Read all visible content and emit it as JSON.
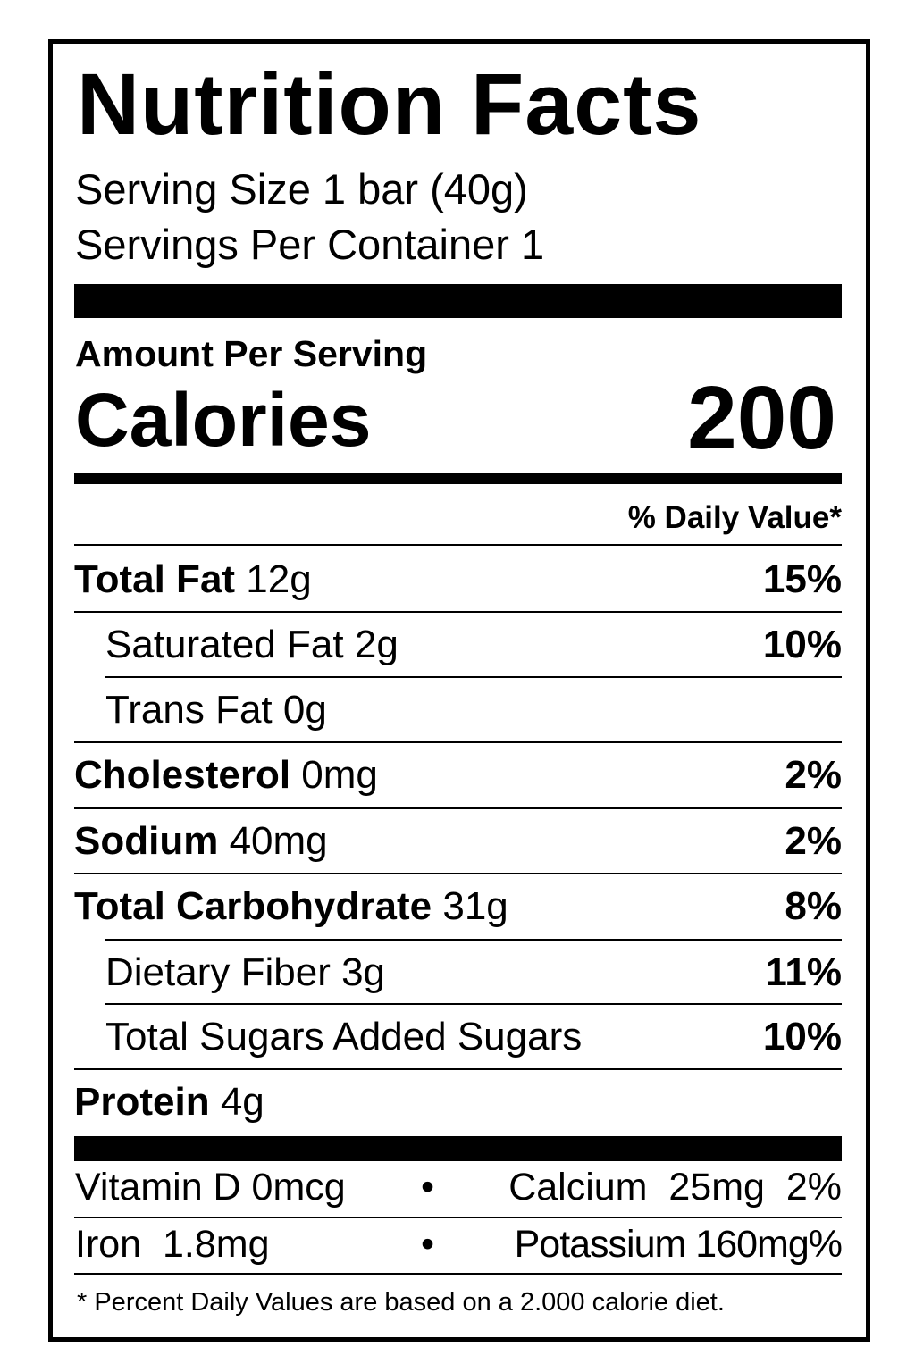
{
  "title": "Nutrition Facts",
  "serving_size": "Serving Size 1 bar (40g)",
  "servings_per_container": "Servings Per Container 1",
  "amount_per_serving": "Amount Per Serving",
  "calories_label": "Calories",
  "calories_value": "200",
  "daily_value_header": "% Daily Value*",
  "nutrients": [
    {
      "name": "Total Fat",
      "amount": "12g",
      "dv": "15%"
    },
    {
      "name": "Saturated Fat",
      "amount": "2g",
      "dv": "10%"
    },
    {
      "name": "Trans Fat",
      "amount": "0g",
      "dv": ""
    },
    {
      "name": "Cholesterol",
      "amount": "0mg",
      "dv": "2%"
    },
    {
      "name": "Sodium",
      "amount": "40mg",
      "dv": "2%"
    },
    {
      "name": "Total Carbohydrate",
      "amount": "31g",
      "dv": "8%"
    },
    {
      "name": "Dietary Fiber",
      "amount": "3g",
      "dv": "11%"
    },
    {
      "name": "Total Sugars Added Sugars",
      "amount": "",
      "dv": "10%"
    },
    {
      "name": "Protein",
      "amount": "4g",
      "dv": ""
    }
  ],
  "vitamins": [
    {
      "left": "Vitamin D 0mcg",
      "bullet": "•",
      "right": "Calcium  25mg  2%"
    },
    {
      "left": "Iron  1.8mg",
      "bullet": "•",
      "right": "Potassium 160mg%"
    }
  ],
  "footnote": "* Percent Daily Values are based on a 2.000 calorie diet."
}
